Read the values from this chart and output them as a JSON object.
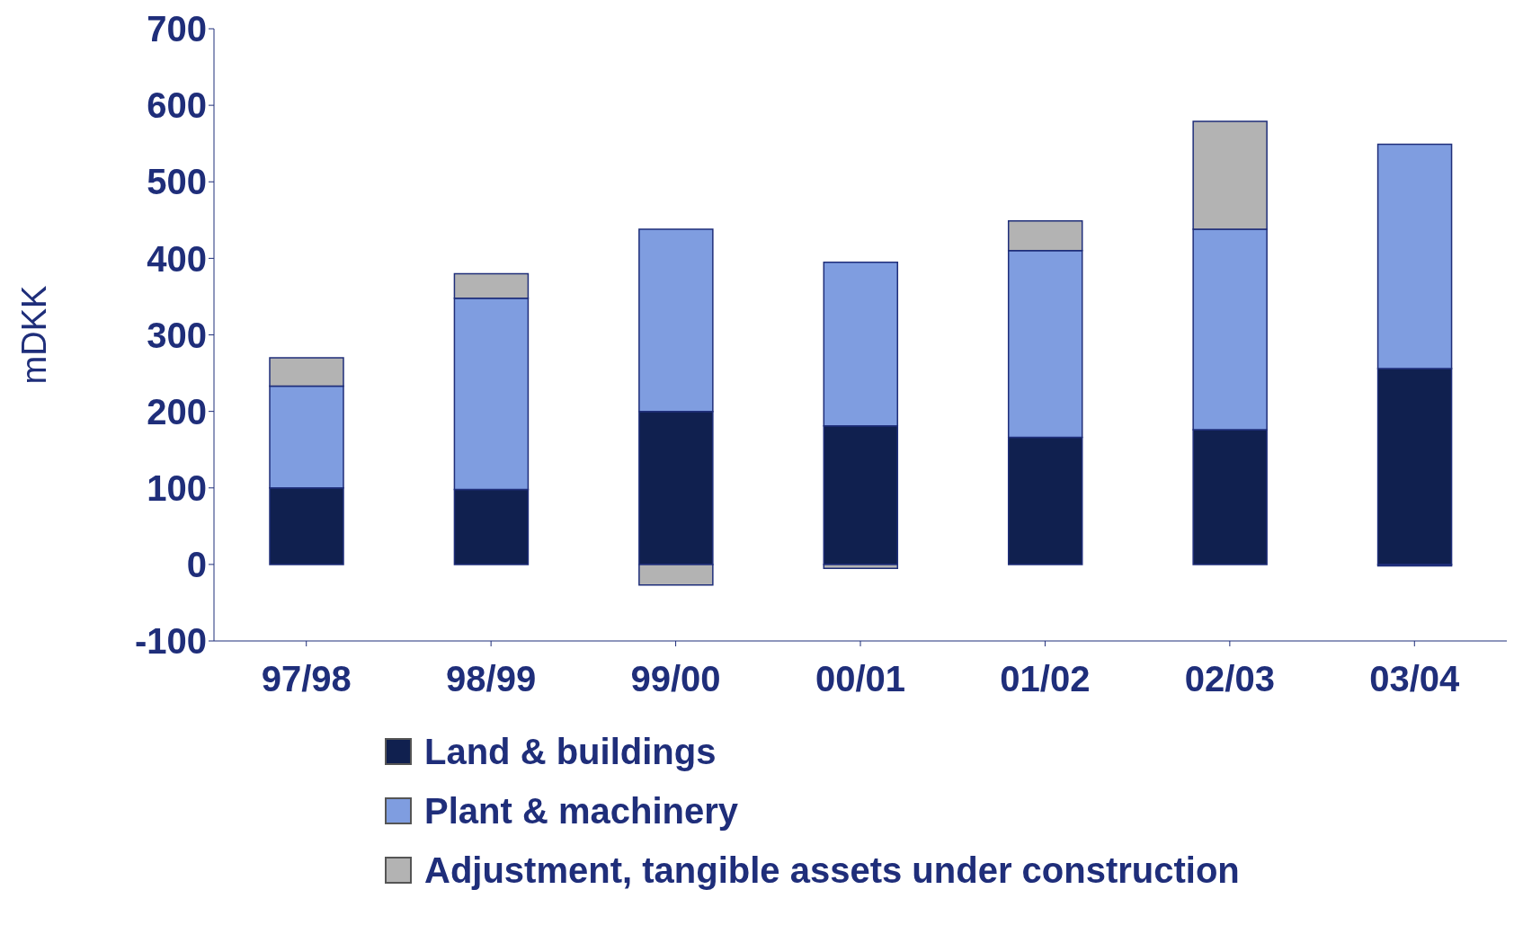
{
  "chart_data": {
    "type": "bar",
    "stacked": true,
    "ylabel": "mDKK",
    "categories": [
      "97/98",
      "98/99",
      "99/00",
      "00/01",
      "01/02",
      "02/03",
      "03/04"
    ],
    "series": [
      {
        "name": "Land & buildings",
        "color": "#10204f",
        "values": [
          100,
          98,
          200,
          181,
          166,
          176,
          256
        ]
      },
      {
        "name": "Plant & machinery",
        "color": "#7f9de0",
        "values": [
          133,
          250,
          238,
          214,
          244,
          262,
          293
        ]
      },
      {
        "name": "Adjustment, tangible assets under construction",
        "color": "#b3b3b3",
        "values": [
          37,
          32,
          -27,
          -5,
          39,
          141,
          -2
        ]
      }
    ],
    "ylim": [
      -100,
      700
    ],
    "yticks": [
      -100,
      0,
      100,
      200,
      300,
      400,
      500,
      600,
      700
    ],
    "grid": false,
    "legend": "bottom"
  }
}
